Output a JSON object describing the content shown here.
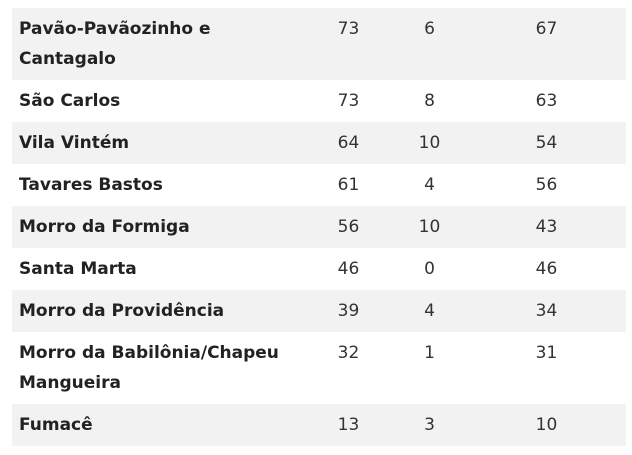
{
  "table": {
    "rows": [
      {
        "name": "Pavão-Pavãozinho e Cantagalo",
        "a": "73",
        "b": "6",
        "c": "67"
      },
      {
        "name": "São Carlos",
        "a": "73",
        "b": "8",
        "c": "63"
      },
      {
        "name": "Vila Vintém",
        "a": "64",
        "b": "10",
        "c": "54"
      },
      {
        "name": "Tavares Bastos",
        "a": "61",
        "b": "4",
        "c": "56"
      },
      {
        "name": "Morro da Formiga",
        "a": "56",
        "b": "10",
        "c": "43"
      },
      {
        "name": "Santa Marta",
        "a": "46",
        "b": "0",
        "c": "46"
      },
      {
        "name": "Morro da Providência",
        "a": "39",
        "b": "4",
        "c": "34"
      },
      {
        "name": "Morro da Babilônia/Chapeu Mangueira",
        "a": "32",
        "b": "1",
        "c": "31"
      },
      {
        "name": "Fumacê",
        "a": "13",
        "b": "3",
        "c": "10"
      }
    ]
  },
  "colors": {
    "row_shaded": "#f2f2f2",
    "row_plain": "#ffffff",
    "text": "#222222"
  }
}
